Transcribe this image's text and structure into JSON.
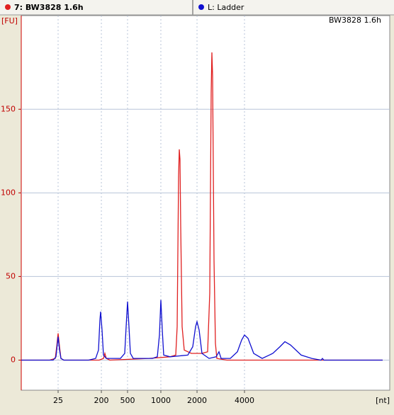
{
  "chart_data": {
    "type": "line",
    "legend_items": [
      "7: BW3828 1.6h",
      "L: Ladder"
    ],
    "annotation": "BW3828 1.6h",
    "y_label": "[FU]",
    "x_label": "[nt]",
    "xlim": [
      19,
      69
    ],
    "ylim": [
      -18,
      206
    ],
    "xticks": [
      {
        "value": 24.0,
        "label": "25"
      },
      {
        "value": 29.87,
        "label": "200"
      },
      {
        "value": 33.42,
        "label": "500"
      },
      {
        "value": 37.94,
        "label": "1000"
      },
      {
        "value": 42.85,
        "label": "2000"
      },
      {
        "value": 49.29,
        "label": "4000"
      }
    ],
    "yticks": [
      0,
      50,
      100,
      150
    ],
    "grid": true,
    "series": [
      {
        "name": "7: BW3828 1.6h",
        "color": "#e02020",
        "x": [
          19.0,
          22.85,
          23.62,
          23.81,
          24.0,
          24.19,
          24.38,
          24.77,
          29.58,
          30.15,
          30.35,
          30.54,
          31.02,
          36.31,
          39.19,
          39.96,
          40.15,
          40.35,
          40.44,
          40.54,
          40.63,
          40.83,
          41.12,
          42.08,
          43.52,
          44.29,
          44.58,
          44.77,
          44.87,
          44.96,
          45.15,
          45.35,
          45.54,
          46.88,
          54.58,
          60.35,
          68.04
        ],
        "values": [
          0,
          0,
          1,
          8,
          16,
          8,
          1,
          0,
          0,
          1,
          4,
          1,
          0,
          1,
          2,
          3,
          20,
          110,
          126,
          120,
          80,
          20,
          6,
          4,
          4,
          5,
          40,
          160,
          184,
          170,
          60,
          10,
          1,
          0,
          0,
          0,
          0
        ]
      },
      {
        "name": "L: Ladder",
        "color": "#1010d0",
        "x": [
          19.0,
          23.33,
          23.71,
          23.9,
          24.0,
          24.19,
          24.38,
          24.77,
          28.13,
          29.1,
          29.48,
          29.67,
          29.77,
          29.96,
          30.15,
          30.54,
          32.46,
          33.04,
          33.23,
          33.42,
          33.62,
          33.81,
          34.19,
          36.79,
          37.46,
          37.75,
          37.94,
          38.13,
          38.33,
          39.19,
          41.6,
          42.27,
          42.65,
          42.85,
          43.13,
          43.52,
          44.48,
          45.44,
          45.83,
          46.12,
          47.37,
          48.33,
          48.9,
          49.29,
          49.77,
          50.54,
          51.69,
          53.13,
          54.1,
          54.77,
          55.54,
          56.98,
          58.42,
          59.67,
          59.87,
          60.06,
          68.04
        ],
        "values": [
          0,
          0,
          2,
          10,
          14,
          6,
          1,
          0,
          0,
          1,
          6,
          24,
          29,
          18,
          3,
          1,
          1,
          4,
          20,
          35,
          20,
          4,
          1,
          1,
          2,
          15,
          36,
          18,
          3,
          2,
          3,
          8,
          20,
          23,
          18,
          4,
          1,
          2,
          5,
          1,
          1,
          5,
          12,
          15,
          13,
          4,
          1,
          4,
          8,
          11,
          9,
          3,
          1,
          0,
          1,
          0,
          0
        ]
      }
    ]
  }
}
